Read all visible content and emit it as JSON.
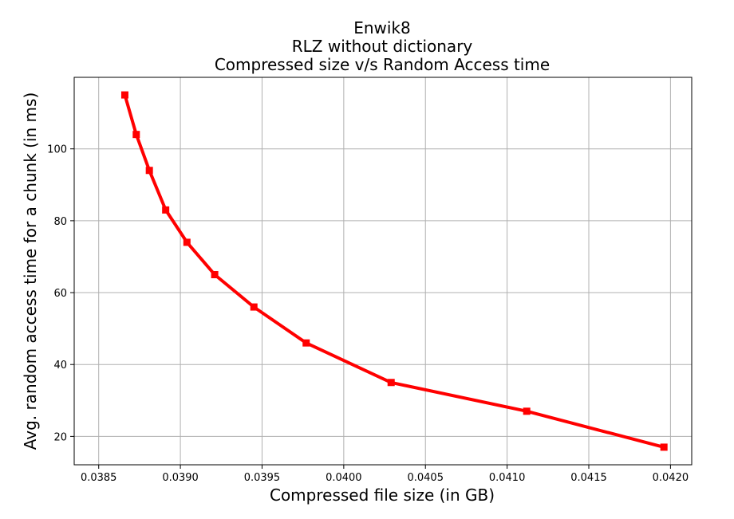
{
  "chart_data": {
    "type": "line",
    "title_lines": [
      "Enwik8",
      "RLZ without dictionary",
      "Compressed size v/s Random Access time"
    ],
    "xlabel": "Compressed file size (in GB)",
    "ylabel": "Avg. random access time for a chunk (in ms)",
    "xlim": [
      0.03835,
      0.04213
    ],
    "ylim": [
      12.1,
      119.9
    ],
    "xticks": [
      0.0385,
      0.039,
      0.0395,
      0.04,
      0.0405,
      0.041,
      0.0415,
      0.042
    ],
    "xtick_labels": [
      "0.0385",
      "0.0390",
      "0.0395",
      "0.0400",
      "0.0405",
      "0.0410",
      "0.0415",
      "0.0420"
    ],
    "yticks": [
      20,
      40,
      60,
      80,
      100
    ],
    "ytick_labels": [
      "20",
      "40",
      "60",
      "80",
      "100"
    ],
    "grid": true,
    "series": [
      {
        "color": "#ff0000",
        "marker": "square",
        "x": [
          0.03866,
          0.03873,
          0.03881,
          0.03891,
          0.03904,
          0.03921,
          0.03945,
          0.03977,
          0.04029,
          0.04112,
          0.04196
        ],
        "y": [
          115,
          104,
          94,
          83,
          74,
          65,
          56,
          46,
          35,
          27,
          17
        ]
      }
    ]
  }
}
